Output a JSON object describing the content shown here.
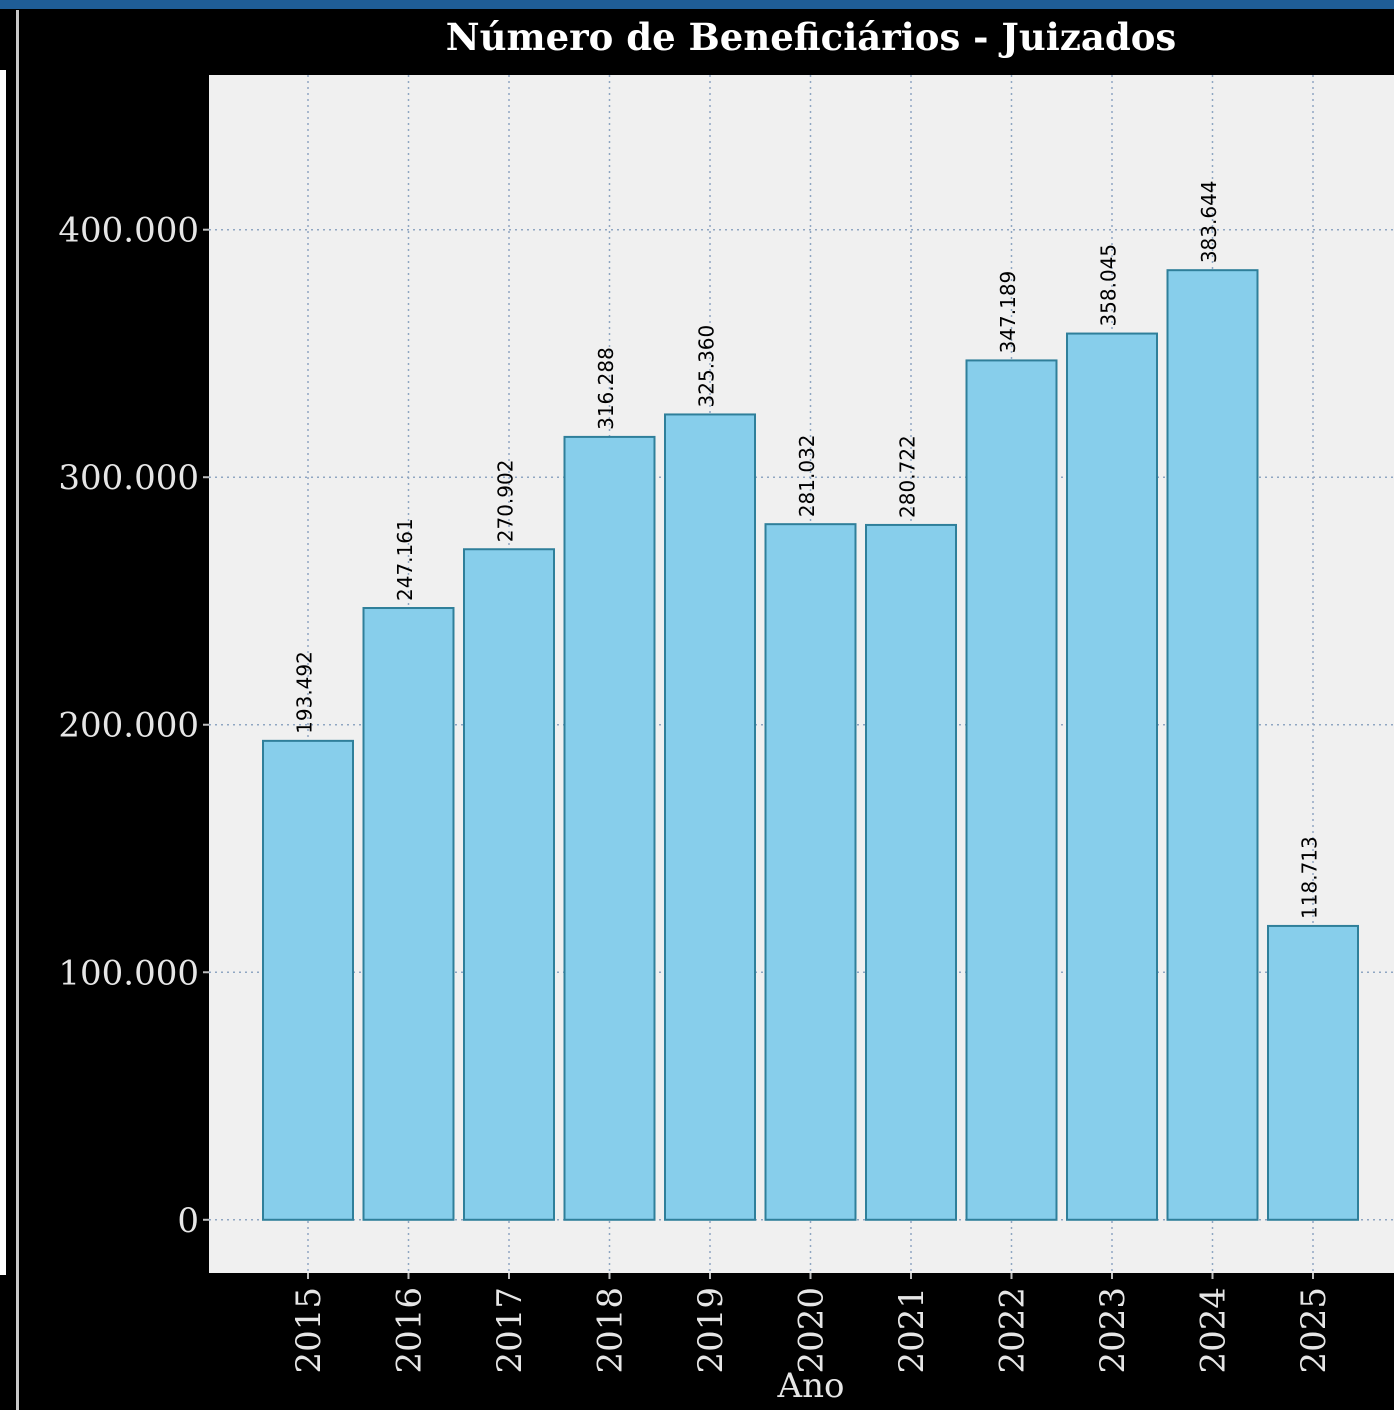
{
  "chart_data": {
    "type": "bar",
    "title": "Número de Beneficiários - Juizados",
    "xlabel": "Ano",
    "ylabel": "",
    "categories": [
      "2015",
      "2016",
      "2017",
      "2018",
      "2019",
      "2020",
      "2021",
      "2022",
      "2023",
      "2024",
      "2025"
    ],
    "values": [
      193492,
      247161,
      270902,
      316288,
      325360,
      281032,
      280722,
      347189,
      358045,
      383644,
      118713
    ],
    "value_labels": [
      "193.492",
      "247.161",
      "270.902",
      "316.288",
      "325.360",
      "281.032",
      "280.722",
      "347.189",
      "358.045",
      "383.644",
      "118.713"
    ],
    "ylim": [
      -21500,
      462500
    ],
    "yticks": [
      0,
      100000,
      200000,
      300000,
      400000
    ],
    "ytick_labels": [
      "0",
      "100.000",
      "200.000",
      "300.000",
      "400.000"
    ],
    "grid": true,
    "legend": "none",
    "colors": {
      "bar_fill": "#87ceeb",
      "bar_stroke": "#2f7f9a",
      "panel_background": "#f0f0f0",
      "figure_background": "#000000",
      "grid": "#8fa6c2",
      "header_strip": "#1f5d96"
    }
  }
}
